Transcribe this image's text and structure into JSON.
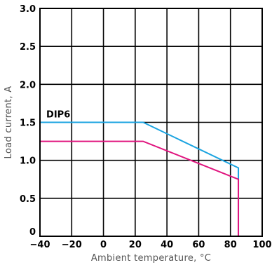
{
  "chart_data": {
    "type": "line",
    "title": "",
    "xlabel": "Ambient temperature, °C",
    "ylabel": "Load current, A",
    "xlim": [
      -40,
      100
    ],
    "ylim": [
      0,
      3.0
    ],
    "x_ticks": [
      -40,
      -20,
      0,
      20,
      40,
      60,
      80,
      100
    ],
    "x_tick_labels": [
      "−40",
      "−20",
      "0",
      "20",
      "40",
      "60",
      "80",
      "100"
    ],
    "y_ticks": [
      0,
      0.5,
      1.0,
      1.5,
      2.0,
      2.5,
      3.0
    ],
    "y_tick_labels": [
      "0",
      "0.5",
      "1.0",
      "1.5",
      "2.0",
      "2.5",
      "3.0"
    ],
    "grid": true,
    "series": [
      {
        "name": "DIP6",
        "color": "#1aa3e0",
        "x": [
          -40,
          25,
          85,
          85
        ],
        "y": [
          1.5,
          1.5,
          0.9,
          0
        ]
      },
      {
        "name": "",
        "color": "#e0147e",
        "x": [
          -40,
          25,
          85,
          85
        ],
        "y": [
          1.25,
          1.25,
          0.75,
          0
        ]
      }
    ],
    "annotations": [
      {
        "text": "DIP6",
        "x": -36,
        "y": 1.6
      }
    ]
  }
}
